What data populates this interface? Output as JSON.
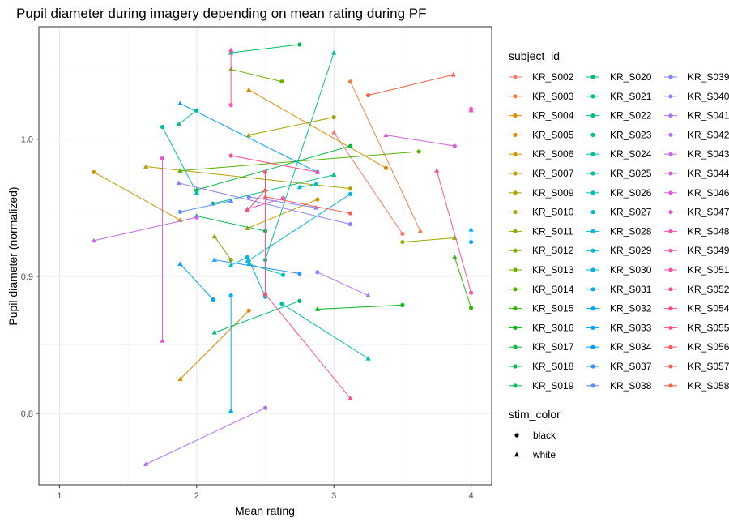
{
  "chart_data": {
    "type": "line",
    "title": "Pupil diameter during imagery depending on mean rating during PF",
    "xlabel": "Mean rating",
    "ylabel": "Pupil diameter (normalized)",
    "xlim": [
      0.85,
      4.15
    ],
    "ylim": [
      0.748,
      1.082
    ],
    "xticks": [
      1,
      2,
      3,
      4
    ],
    "yticks": [
      0.8,
      0.9,
      1.0
    ],
    "ytick_labels": [
      "0.8",
      "0.9",
      "1.0"
    ],
    "grid": true,
    "legend_placement": "right",
    "legend_color_title": "subject_id",
    "legend_shape_title": "stim_color",
    "shape_legend": [
      {
        "label": "black",
        "shape": "circle"
      },
      {
        "label": "white",
        "shape": "triangle"
      }
    ],
    "series": [
      {
        "name": "KR_S002",
        "color": "#F8766D",
        "black": [
          3.5,
          0.931
        ],
        "white": [
          3.0,
          1.005
        ]
      },
      {
        "name": "KR_S003",
        "color": "#EE8043",
        "black": [
          3.12,
          1.042
        ],
        "white": [
          3.63,
          0.933
        ]
      },
      {
        "name": "KR_S004",
        "color": "#E38900",
        "black": [
          3.38,
          0.979
        ],
        "white": [
          2.38,
          1.036
        ]
      },
      {
        "name": "KR_S005",
        "color": "#D89000",
        "black": [
          2.38,
          0.875
        ],
        "white": [
          1.88,
          0.825
        ]
      },
      {
        "name": "KR_S006",
        "color": "#CC9600",
        "black": [
          1.25,
          0.976
        ],
        "white": [
          1.88,
          0.941
        ]
      },
      {
        "name": "KR_S007",
        "color": "#BF9C00",
        "black": [
          2.88,
          0.956
        ],
        "white": [
          2.37,
          0.935
        ]
      },
      {
        "name": "KR_S009",
        "color": "#B2A100",
        "black": [
          3.12,
          0.964
        ],
        "white": [
          1.63,
          0.98
        ]
      },
      {
        "name": "KR_S010",
        "color": "#A3A500",
        "black": [
          3.0,
          1.016
        ],
        "white": [
          2.38,
          1.003
        ]
      },
      {
        "name": "KR_S011",
        "color": "#93AA00",
        "black": [
          3.5,
          0.925
        ],
        "white": [
          3.88,
          0.928
        ]
      },
      {
        "name": "KR_S012",
        "color": "#7FAE00",
        "black": [
          2.25,
          0.912
        ],
        "white": [
          2.13,
          0.929
        ]
      },
      {
        "name": "KR_S013",
        "color": "#6BB100",
        "black": [
          2.62,
          1.042
        ],
        "white": [
          2.25,
          1.051
        ]
      },
      {
        "name": "KR_S014",
        "color": "#53B400",
        "black": [
          3.62,
          0.991
        ],
        "white": [
          1.88,
          0.977
        ]
      },
      {
        "name": "KR_S015",
        "color": "#2EB600",
        "black": [
          4.0,
          0.877
        ],
        "white": [
          3.88,
          0.914
        ]
      },
      {
        "name": "KR_S016",
        "color": "#00B815",
        "black": [
          3.5,
          0.879
        ],
        "white": [
          2.88,
          0.876
        ]
      },
      {
        "name": "KR_S017",
        "color": "#00BA38",
        "black": [
          3.12,
          0.995
        ],
        "white": [
          2.0,
          0.963
        ]
      },
      {
        "name": "KR_S018",
        "color": "#00BB4E",
        "black": [
          2.5,
          0.933
        ],
        "white": [
          2.0,
          0.944
        ]
      },
      {
        "name": "KR_S019",
        "color": "#00BC5F",
        "black": [
          2.75,
          1.069
        ],
        "white": [
          2.25,
          1.063
        ]
      },
      {
        "name": "KR_S020",
        "color": "#00BE6E",
        "black": [
          2.75,
          0.882
        ],
        "white": [
          2.13,
          0.859
        ]
      },
      {
        "name": "KR_S021",
        "color": "#00C07B",
        "black": [
          2.0,
          1.021
        ],
        "white": [
          1.87,
          1.011
        ]
      },
      {
        "name": "KR_S022",
        "color": "#00C087",
        "black": [
          2.12,
          0.953
        ],
        "white": [
          3.0,
          0.974
        ]
      },
      {
        "name": "KR_S023",
        "color": "#00C194",
        "black": [
          2.5,
          0.912
        ],
        "white": [
          3.0,
          1.063
        ]
      },
      {
        "name": "KR_S024",
        "color": "#00C0A0",
        "black": [
          1.75,
          1.009
        ],
        "white": [
          2.0,
          0.961
        ]
      },
      {
        "name": "KR_S025",
        "color": "#00C0AD",
        "black": [
          2.62,
          0.88
        ],
        "white": [
          3.25,
          0.84
        ]
      },
      {
        "name": "KR_S026",
        "color": "#00BFB9",
        "black": [
          2.63,
          0.901
        ],
        "white": [
          2.38,
          0.909
        ]
      },
      {
        "name": "KR_S027",
        "color": "#00BDC5",
        "black": [
          2.87,
          0.967
        ],
        "white": [
          2.75,
          0.965
        ]
      },
      {
        "name": "KR_S028",
        "color": "#00BBD1",
        "black": [
          2.37,
          0.914
        ],
        "white": [
          2.25,
          0.908
        ]
      },
      {
        "name": "KR_S029",
        "color": "#00B8DC",
        "black": [
          2.5,
          0.885
        ],
        "white": [
          2.38,
          0.912
        ]
      },
      {
        "name": "KR_S030",
        "color": "#00B4E7",
        "black": [
          3.12,
          0.96
        ],
        "white": [
          2.37,
          0.911
        ]
      },
      {
        "name": "KR_S031",
        "color": "#00AFF0",
        "black": [
          2.25,
          0.886
        ],
        "white": [
          2.25,
          0.802
        ]
      },
      {
        "name": "KR_S032",
        "color": "#00AAF8",
        "black": [
          4.0,
          0.925
        ],
        "white": [
          4.0,
          0.934
        ]
      },
      {
        "name": "KR_S033",
        "color": "#00A4FF",
        "black": [
          2.12,
          0.883
        ],
        "white": [
          1.88,
          0.909
        ]
      },
      {
        "name": "KR_S034",
        "color": "#009EFF",
        "black": [
          2.88,
          0.976
        ],
        "white": [
          1.88,
          1.026
        ]
      },
      {
        "name": "KR_S037",
        "color": "#2D96FF",
        "black": [
          2.75,
          0.902
        ],
        "white": [
          2.13,
          0.912
        ]
      },
      {
        "name": "KR_S038",
        "color": "#5C8EFF",
        "black": [
          1.88,
          0.947
        ],
        "white": [
          2.25,
          0.955
        ]
      },
      {
        "name": "KR_S039",
        "color": "#7B86FF",
        "black": [
          2.38,
          0.958
        ],
        "white": [
          2.87,
          0.95
        ]
      },
      {
        "name": "KR_S040",
        "color": "#937EFE",
        "black": [
          3.12,
          0.938
        ],
        "white": [
          1.87,
          0.968
        ]
      },
      {
        "name": "KR_S041",
        "color": "#A676F7",
        "black": [
          2.88,
          0.903
        ],
        "white": [
          3.25,
          0.886
        ]
      },
      {
        "name": "KR_S042",
        "color": "#B76EF0",
        "black": [
          2.5,
          0.804
        ],
        "white": [
          1.63,
          0.763
        ]
      },
      {
        "name": "KR_S043",
        "color": "#C667E8",
        "black": [
          2.0,
          0.943
        ],
        "white": [
          1.25,
          0.926
        ]
      },
      {
        "name": "KR_S044",
        "color": "#D361DF",
        "black": [
          3.88,
          0.995
        ],
        "white": [
          3.38,
          1.003
        ]
      },
      {
        "name": "KR_S046",
        "color": "#DE5CD5",
        "black": [
          1.75,
          0.986
        ],
        "white": [
          1.75,
          0.853
        ]
      },
      {
        "name": "KR_S047",
        "color": "#E857CA",
        "black": [
          2.63,
          0.957
        ],
        "white": [
          2.37,
          0.949
        ]
      },
      {
        "name": "KR_S048",
        "color": "#F053BD",
        "black": [
          4.0,
          1.022
        ],
        "white": [
          4.0,
          1.021
        ]
      },
      {
        "name": "KR_S049",
        "color": "#F651B0",
        "black": [
          2.25,
          1.025
        ],
        "white": [
          2.25,
          1.065
        ]
      },
      {
        "name": "KR_S051",
        "color": "#FB4FA1",
        "black": [
          4.0,
          0.888
        ],
        "white": [
          3.75,
          0.977
        ]
      },
      {
        "name": "KR_S052",
        "color": "#FE4E92",
        "black": [
          2.25,
          0.988
        ],
        "white": [
          2.88,
          0.976
        ]
      },
      {
        "name": "KR_S054",
        "color": "#FF5082",
        "black": [
          2.5,
          0.887
        ],
        "white": [
          3.12,
          0.811
        ]
      },
      {
        "name": "KR_S055",
        "color": "#FF5373",
        "black": [
          2.5,
          0.976
        ],
        "white": [
          2.5,
          0.887
        ]
      },
      {
        "name": "KR_S056",
        "color": "#FE5763",
        "black": [
          2.37,
          0.948
        ],
        "white": [
          2.5,
          0.963
        ]
      },
      {
        "name": "KR_S057",
        "color": "#FC5C53",
        "black": [
          3.12,
          0.946
        ],
        "white": [
          2.5,
          0.958
        ]
      },
      {
        "name": "KR_S058",
        "color": "#FA6244",
        "black": [
          3.25,
          1.032
        ],
        "white": [
          3.87,
          1.047
        ]
      }
    ]
  }
}
